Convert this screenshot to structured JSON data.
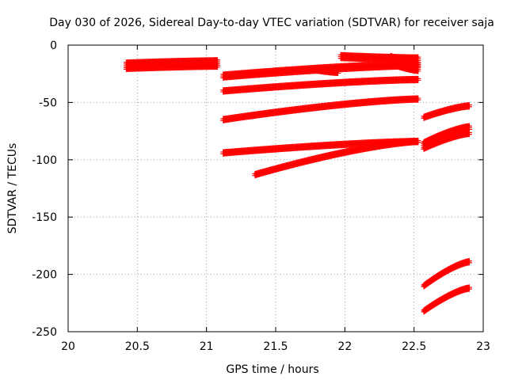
{
  "chart_data": {
    "type": "scatter",
    "title": "Day 030 of 2026, Sidereal Day-to-day VTEC variation (SDTVAR) for receiver saja",
    "xlabel": "GPS time / hours",
    "ylabel": "SDTVAR / TECUs",
    "xlim": [
      20,
      23
    ],
    "ylim": [
      -250,
      0
    ],
    "x_ticks": [
      20,
      20.5,
      21,
      21.5,
      22,
      22.5,
      23
    ],
    "y_ticks": [
      0,
      -50,
      -100,
      -150,
      -200,
      -250
    ],
    "x_tick_labels": [
      "20",
      "20.5",
      "21",
      "21.5",
      "22",
      "22.5",
      "23"
    ],
    "y_tick_labels": [
      "0",
      "-50",
      "-100",
      "-150",
      "-200",
      "-250"
    ],
    "grid": true,
    "marker": "+",
    "marker_color": "#ff0000",
    "series": [
      {
        "name": "arc-1",
        "x_start": 20.42,
        "x_end": 21.08,
        "y_start": -18,
        "y_end": -16,
        "thickness": 5
      },
      {
        "name": "arc-2",
        "x_start": 21.12,
        "x_end": 22.53,
        "y_start": -27,
        "y_end": -17,
        "thickness": 3
      },
      {
        "name": "arc-3",
        "x_start": 21.12,
        "x_end": 22.53,
        "y_start": -40,
        "y_end": -30,
        "thickness": 2
      },
      {
        "name": "arc-4",
        "x_start": 21.12,
        "x_end": 22.53,
        "y_start": -65,
        "y_end": -47,
        "thickness": 2
      },
      {
        "name": "arc-5",
        "x_start": 21.12,
        "x_end": 22.53,
        "y_start": -94,
        "y_end": -84,
        "thickness": 2
      },
      {
        "name": "arc-6",
        "x_start": 21.35,
        "x_end": 22.53,
        "y_start": -113,
        "y_end": -84,
        "thickness": 2
      },
      {
        "name": "arc-7",
        "x_start": 21.97,
        "x_end": 22.53,
        "y_start": -10,
        "y_end": -12,
        "thickness": 3
      },
      {
        "name": "arc-8",
        "x_start": 22.33,
        "x_end": 22.53,
        "y_start": -13,
        "y_end": -19,
        "thickness": 6
      },
      {
        "name": "arc-9",
        "x_start": 21.8,
        "x_end": 21.95,
        "y_start": -21,
        "y_end": -23,
        "thickness": 3
      },
      {
        "name": "arc-10",
        "x_start": 22.57,
        "x_end": 22.9,
        "y_start": -63,
        "y_end": -53,
        "thickness": 2
      },
      {
        "name": "arc-11",
        "x_start": 22.57,
        "x_end": 22.9,
        "y_start": -86,
        "y_end": -72,
        "thickness": 3
      },
      {
        "name": "arc-12",
        "x_start": 22.57,
        "x_end": 22.9,
        "y_start": -90,
        "y_end": -77,
        "thickness": 2
      },
      {
        "name": "arc-13",
        "x_start": 22.57,
        "x_end": 22.9,
        "y_start": -210,
        "y_end": -189,
        "thickness": 2
      },
      {
        "name": "arc-14",
        "x_start": 22.57,
        "x_end": 22.9,
        "y_start": -232,
        "y_end": -212,
        "thickness": 2
      }
    ]
  }
}
